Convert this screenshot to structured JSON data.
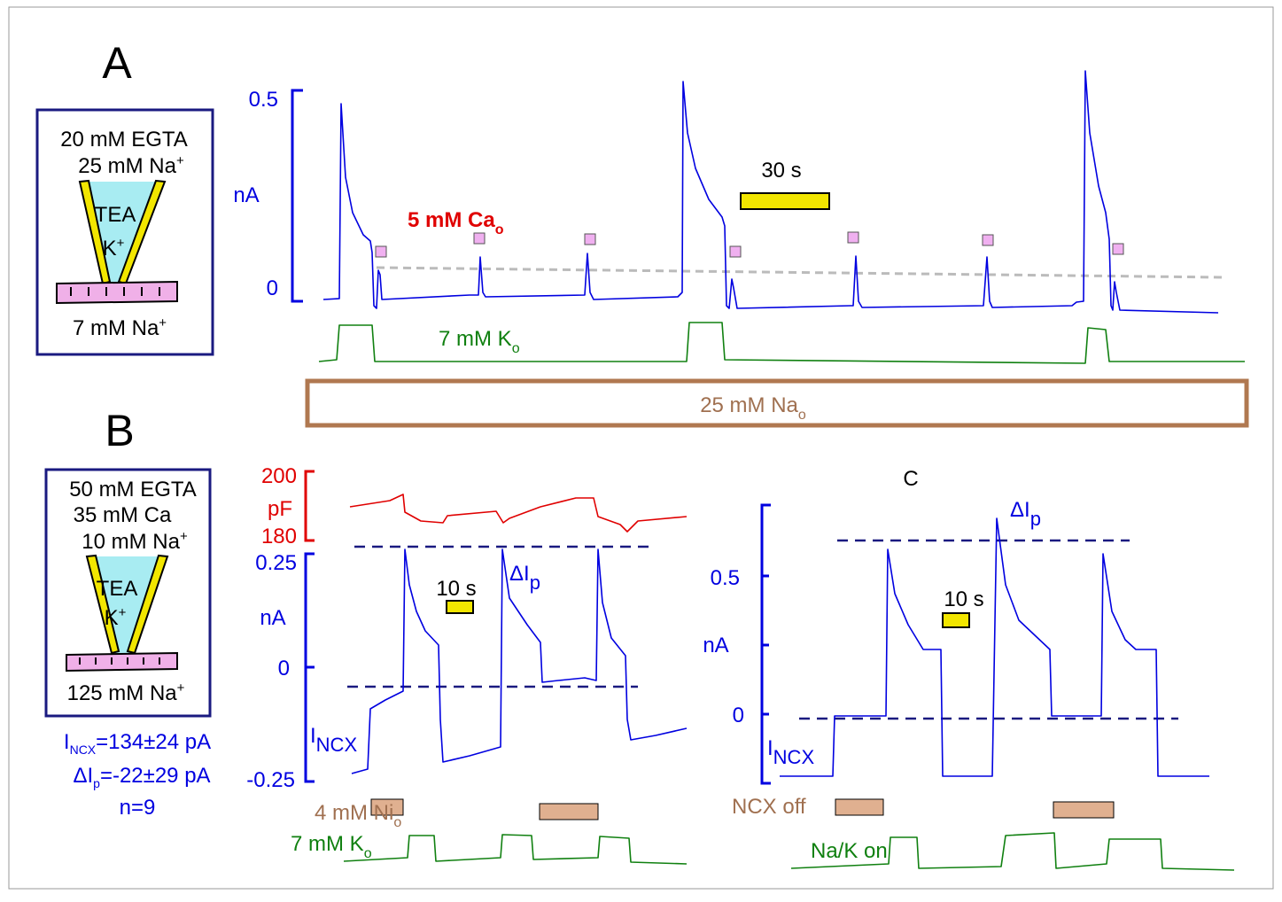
{
  "panels": {
    "A": {
      "label": "A",
      "box": {
        "egta": "20 mM EGTA",
        "na_in": {
          "text": "25 mM Na",
          "sup": "+"
        },
        "tea": "TEA",
        "k": {
          "text": "K",
          "sup": "+"
        },
        "na_out": {
          "text": "7 mM Na",
          "sup": "+"
        }
      },
      "axis": {
        "unit": "nA",
        "ticks": [
          "0.5",
          "0"
        ]
      },
      "ca_label": {
        "text": "5 mM  Ca",
        "sub": "o"
      },
      "scale": "30 s",
      "k_label": {
        "text": "7 mM K",
        "sub": "o"
      },
      "na_label": {
        "text": "25 mM Na",
        "sub": "o"
      }
    },
    "B": {
      "label": "B",
      "box": {
        "egta": "50 mM EGTA",
        "ca": "35 mM Ca",
        "na_in": {
          "text": "10 mM Na",
          "sup": "+"
        },
        "tea": "TEA",
        "k": {
          "text": "K",
          "sup": "+"
        },
        "na_out": {
          "text": "125 mM Na",
          "sup": "+"
        }
      },
      "stats": [
        {
          "text": "I",
          "sub": "NCX",
          "rest": "=134±24 pA"
        },
        {
          "text": "ΔI",
          "sub": "p",
          "rest": "=-22±29 pA"
        },
        {
          "text": "n=9"
        }
      ],
      "pf_axis": {
        "unit": "pF",
        "ticks": [
          "200",
          "180"
        ]
      },
      "axis": {
        "unit": "nA",
        "ticks": [
          "0.25",
          "0",
          "-0.25"
        ]
      },
      "incx": {
        "text": "I",
        "sub": "NCX"
      },
      "delta": {
        "text": "ΔI",
        "sub": "p"
      },
      "scale": "10 s",
      "ni_label": {
        "text": "4 mM Ni",
        "sub": "o"
      },
      "k_label": {
        "text": "7 mM K",
        "sub": "o"
      }
    },
    "C": {
      "label": "C",
      "axis": {
        "unit": "nA",
        "ticks": [
          "0.5",
          "0"
        ]
      },
      "incx": {
        "text": "I",
        "sub": "NCX"
      },
      "delta": {
        "text": "ΔI",
        "sub": "p"
      },
      "scale": "10 s",
      "ncx_label": "NCX off",
      "nak_label": "Na/K on"
    }
  }
}
